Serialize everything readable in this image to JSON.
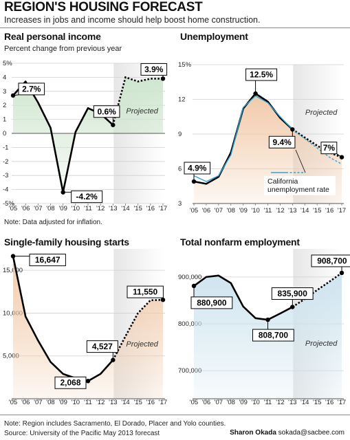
{
  "header": {
    "title": "REGION'S HOUSING FORECAST",
    "subtitle": "Increases in jobs and income should help boost home construction."
  },
  "colors": {
    "green_fill": "#cfe6cf",
    "orange_fill": "#f2c9a8",
    "blue_fill": "#cde4ef",
    "projected_band": "#e6e6e6",
    "california_line": "#29a3d6",
    "line": "#000000"
  },
  "projected_label": "Projected",
  "footer": {
    "note": "Note: Region includes Sacramento, El Dorado, Placer and Yolo counties.",
    "source": "Source: University of the Pacific May 2013 forecast",
    "credit_name": "Sharon Okada",
    "credit_email": "sokada@sacbee.com"
  },
  "chart_data": [
    {
      "type": "line",
      "title": "Real personal income",
      "subtitle": "Percent change from previous year",
      "note": "Note: Data adjusted for inflation.",
      "x": [
        2005,
        2006,
        2007,
        2008,
        2009,
        2010,
        2011,
        2012,
        2013,
        2014,
        2015,
        2016,
        2017
      ],
      "x_tick_labels": [
        "'05",
        "'06",
        "'07",
        "'08",
        "'09",
        "'10",
        "'11",
        "'12",
        "'13",
        "'14",
        "'15",
        "'16",
        "'17"
      ],
      "series": [
        {
          "values": [
            2.7,
            3.7,
            2.2,
            0.4,
            -4.2,
            0.1,
            1.8,
            1.4,
            0.6,
            4.0,
            3.7,
            3.9,
            3.9
          ],
          "projected_from": 2013
        }
      ],
      "ylim": [
        -5,
        5
      ],
      "y_ticks": [
        -5,
        -4,
        -3,
        -2,
        -1,
        0,
        1,
        2,
        3,
        4,
        5
      ],
      "y_tick_labels": [
        "-5%",
        "-4",
        "-3",
        "-2",
        "-1",
        "0",
        "1",
        "2",
        "3",
        "4",
        "5%"
      ],
      "fill": "green",
      "annotations": [
        {
          "x": 2005,
          "y": 2.7,
          "label": "2.7%"
        },
        {
          "x": 2009,
          "y": -4.2,
          "label": "-4.2%"
        },
        {
          "x": 2013,
          "y": 0.6,
          "label": "0.6%"
        },
        {
          "x": 2017,
          "y": 3.9,
          "label": "3.9%"
        }
      ]
    },
    {
      "type": "line",
      "title": "Unemployment",
      "x": [
        2005,
        2006,
        2007,
        2008,
        2009,
        2010,
        2011,
        2012,
        2013,
        2014,
        2015,
        2016,
        2017
      ],
      "x_tick_labels": [
        "'05",
        "'06",
        "'07",
        "'08",
        "'09",
        "'10",
        "'11",
        "'12",
        "'13",
        "'14",
        "'15",
        "'16",
        "'17"
      ],
      "series": [
        {
          "values": [
            4.9,
            4.7,
            5.3,
            7.4,
            11.2,
            12.5,
            11.8,
            10.4,
            9.4,
            8.7,
            8.0,
            7.4,
            7.0
          ],
          "projected_from": 2013
        },
        {
          "name": "California unemployment rate",
          "values": [
            5.4,
            4.9,
            5.4,
            7.2,
            11.3,
            12.3,
            11.7,
            10.5,
            9.4,
            8.6,
            7.8,
            7.0,
            6.4
          ],
          "projected_from": 2013
        }
      ],
      "ylim": [
        3,
        15
      ],
      "y_ticks": [
        3,
        6,
        9,
        12,
        15
      ],
      "y_tick_labels": [
        "3",
        "6",
        "9",
        "12",
        "15%"
      ],
      "fill": "orange",
      "annotations": [
        {
          "x": 2005,
          "y": 4.9,
          "label": "4.9%"
        },
        {
          "x": 2010,
          "y": 12.5,
          "label": "12.5%"
        },
        {
          "x": 2013,
          "y": 9.4,
          "label": "9.4%"
        },
        {
          "x": 2017,
          "y": 7.0,
          "label": "7%"
        }
      ],
      "legend_label": "California\nunemployment rate"
    },
    {
      "type": "line",
      "title": "Single-family housing starts",
      "x": [
        2005,
        2006,
        2007,
        2008,
        2009,
        2010,
        2011,
        2012,
        2013,
        2014,
        2015,
        2016,
        2017
      ],
      "x_tick_labels": [
        "'05",
        "'06",
        "'07",
        "'08",
        "'09",
        "'10",
        "'11",
        "'12",
        "'13",
        "'14",
        "'15",
        "'16",
        "'17"
      ],
      "series": [
        {
          "values": [
            16647,
            9600,
            6800,
            4300,
            2900,
            2400,
            2068,
            2900,
            4527,
            7300,
            10000,
            11500,
            11550
          ],
          "projected_from": 2013
        }
      ],
      "ylim": [
        0,
        17500
      ],
      "y_ticks": [
        5000,
        10000,
        15000
      ],
      "y_tick_labels": [
        "5,000",
        "10,000",
        "15,000"
      ],
      "fill": "orange",
      "annotations": [
        {
          "x": 2005,
          "y": 16647,
          "label": "16,647"
        },
        {
          "x": 2011,
          "y": 2068,
          "label": "2,068"
        },
        {
          "x": 2013,
          "y": 4527,
          "label": "4,527"
        },
        {
          "x": 2017,
          "y": 11550,
          "label": "11,550"
        }
      ]
    },
    {
      "type": "line",
      "title": "Total nonfarm employment",
      "x": [
        2005,
        2006,
        2007,
        2008,
        2009,
        2010,
        2011,
        2012,
        2013,
        2014,
        2015,
        2016,
        2017
      ],
      "x_tick_labels": [
        "'05",
        "'06",
        "'07",
        "'08",
        "'09",
        "'10",
        "'11",
        "'12",
        "'13",
        "'14",
        "'15",
        "'16",
        "'17"
      ],
      "series": [
        {
          "values": [
            880900,
            900000,
            903000,
            887000,
            837000,
            812000,
            808700,
            822000,
            835900,
            853000,
            872000,
            890000,
            908700
          ],
          "projected_from": 2013
        }
      ],
      "ylim": [
        640000,
        960000
      ],
      "y_ticks": [
        700000,
        800000,
        900000
      ],
      "y_tick_labels": [
        "700,000",
        "800,000",
        "900,000"
      ],
      "fill": "blue",
      "annotations": [
        {
          "x": 2005,
          "y": 880900,
          "label": "880,900"
        },
        {
          "x": 2011,
          "y": 808700,
          "label": "808,700"
        },
        {
          "x": 2013,
          "y": 835900,
          "label": "835,900"
        },
        {
          "x": 2017,
          "y": 908700,
          "label": "908,700"
        }
      ]
    }
  ]
}
